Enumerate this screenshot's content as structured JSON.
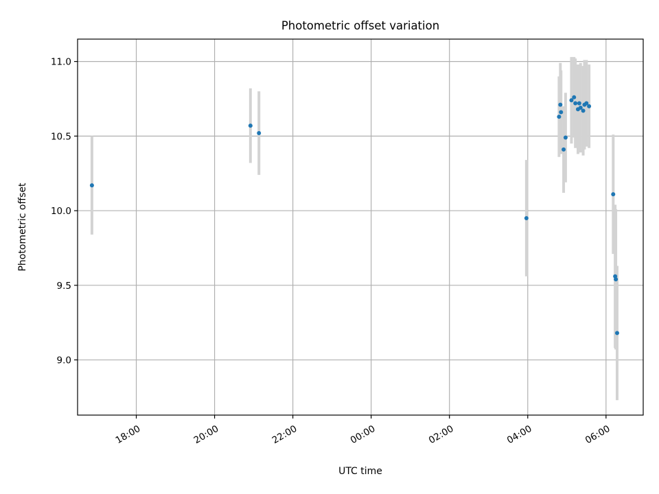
{
  "chart_data": {
    "type": "scatter",
    "title": "Photometric offset variation",
    "xlabel": "UTC time",
    "ylabel": "Photometric offset",
    "x_axis": {
      "kind": "time",
      "min": "2023-01-01T16:30",
      "max": "2023-01-02T06:57",
      "tick_labels": [
        "18:00",
        "20:00",
        "22:00",
        "00:00",
        "02:00",
        "04:00",
        "06:00"
      ],
      "tick_times": [
        "2023-01-01T18:00",
        "2023-01-01T20:00",
        "2023-01-01T22:00",
        "2023-01-02T00:00",
        "2023-01-02T02:00",
        "2023-01-02T04:00",
        "2023-01-02T06:00"
      ]
    },
    "y_axis": {
      "min": 8.63,
      "max": 11.15,
      "ticks": [
        9.0,
        9.5,
        10.0,
        10.5,
        11.0
      ],
      "tick_labels": [
        "9.0",
        "9.5",
        "10.0",
        "10.5",
        "11.0"
      ]
    },
    "grid": true,
    "colors": {
      "point": "#1f77b4",
      "errorbar": "#d3d3d3"
    },
    "points": [
      {
        "x": "2023-01-01T16:52",
        "y": 10.17,
        "err": 0.33
      },
      {
        "x": "2023-01-01T20:55",
        "y": 10.57,
        "err": 0.25
      },
      {
        "x": "2023-01-01T21:08",
        "y": 10.52,
        "err": 0.28
      },
      {
        "x": "2023-01-02T03:58",
        "y": 9.95,
        "err": 0.39
      },
      {
        "x": "2023-01-02T04:48",
        "y": 10.63,
        "err": 0.27
      },
      {
        "x": "2023-01-02T04:50",
        "y": 10.71,
        "err": 0.28
      },
      {
        "x": "2023-01-02T04:51",
        "y": 10.66,
        "err": 0.28
      },
      {
        "x": "2023-01-02T04:55",
        "y": 10.41,
        "err": 0.29
      },
      {
        "x": "2023-01-02T04:58",
        "y": 10.49,
        "err": 0.3
      },
      {
        "x": "2023-01-02T05:07",
        "y": 10.74,
        "err": 0.29
      },
      {
        "x": "2023-01-02T05:11",
        "y": 10.76,
        "err": 0.27
      },
      {
        "x": "2023-01-02T05:13",
        "y": 10.72,
        "err": 0.3
      },
      {
        "x": "2023-01-02T05:17",
        "y": 10.68,
        "err": 0.3
      },
      {
        "x": "2023-01-02T05:19",
        "y": 10.72,
        "err": 0.26
      },
      {
        "x": "2023-01-02T05:21",
        "y": 10.69,
        "err": 0.3
      },
      {
        "x": "2023-01-02T05:25",
        "y": 10.67,
        "err": 0.3
      },
      {
        "x": "2023-01-02T05:27",
        "y": 10.71,
        "err": 0.3
      },
      {
        "x": "2023-01-02T05:30",
        "y": 10.72,
        "err": 0.29
      },
      {
        "x": "2023-01-02T05:34",
        "y": 10.7,
        "err": 0.28
      },
      {
        "x": "2023-01-02T06:11",
        "y": 10.11,
        "err": 0.4
      },
      {
        "x": "2023-01-02T06:14",
        "y": 9.56,
        "err": 0.48
      },
      {
        "x": "2023-01-02T06:15",
        "y": 9.54,
        "err": 0.47
      },
      {
        "x": "2023-01-02T06:17",
        "y": 9.18,
        "err": 0.45
      }
    ]
  }
}
